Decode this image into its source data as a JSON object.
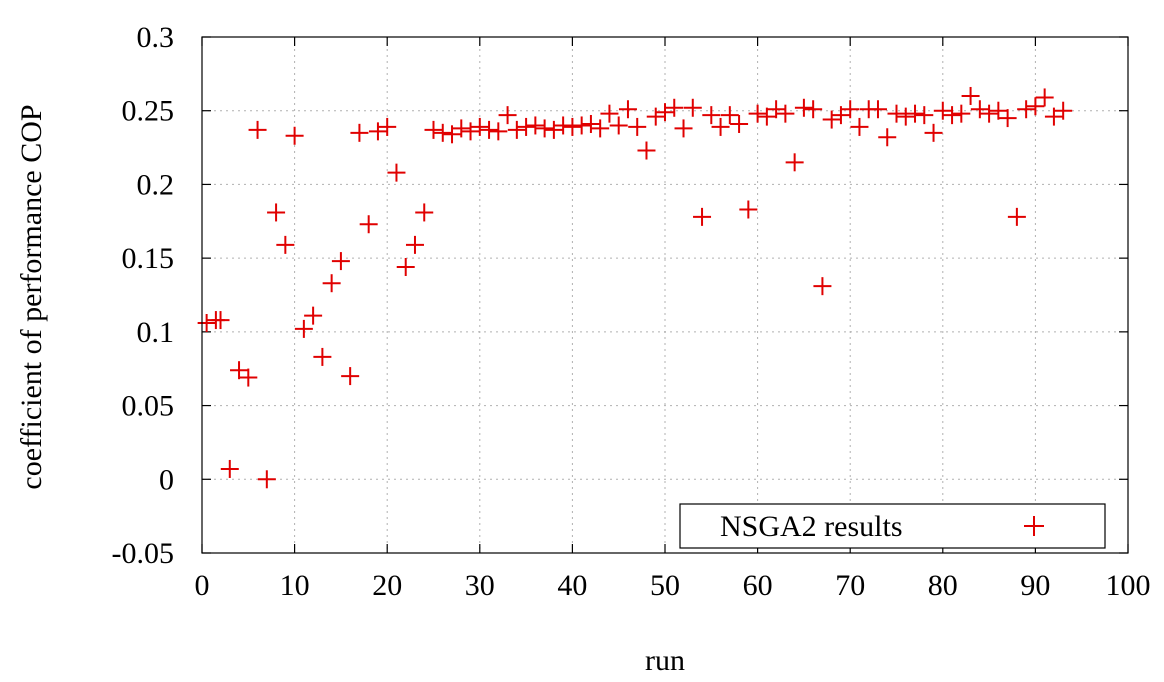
{
  "chart_data": {
    "type": "scatter",
    "title": "",
    "xlabel": "run",
    "ylabel": "coefficient of performance COP",
    "xlim": [
      0,
      100
    ],
    "ylim": [
      -0.05,
      0.3
    ],
    "xticks": [
      0,
      10,
      20,
      30,
      40,
      50,
      60,
      70,
      80,
      90,
      100
    ],
    "yticks": [
      -0.05,
      0,
      0.05,
      0.1,
      0.15,
      0.2,
      0.25,
      0.3
    ],
    "grid": true,
    "legend_position": "bottom-right",
    "series": [
      {
        "name": "NSGA2 results",
        "marker": "plus",
        "color": "#e00000",
        "points": [
          [
            0.5,
            0.106
          ],
          [
            1.5,
            0.108
          ],
          [
            2,
            0.108
          ],
          [
            3,
            0.007
          ],
          [
            4,
            0.074
          ],
          [
            5,
            0.069
          ],
          [
            6,
            0.237
          ],
          [
            7,
            0.0
          ],
          [
            8,
            0.181
          ],
          [
            9,
            0.159
          ],
          [
            10,
            0.233
          ],
          [
            11,
            0.102
          ],
          [
            12,
            0.111
          ],
          [
            13,
            0.083
          ],
          [
            14,
            0.133
          ],
          [
            15,
            0.148
          ],
          [
            16,
            0.07
          ],
          [
            17,
            0.235
          ],
          [
            18,
            0.173
          ],
          [
            19,
            0.236
          ],
          [
            20,
            0.239
          ],
          [
            21,
            0.208
          ],
          [
            22,
            0.144
          ],
          [
            23,
            0.159
          ],
          [
            24,
            0.181
          ],
          [
            25,
            0.237
          ],
          [
            26,
            0.235
          ],
          [
            27,
            0.234
          ],
          [
            28,
            0.238
          ],
          [
            29,
            0.236
          ],
          [
            30,
            0.239
          ],
          [
            31,
            0.237
          ],
          [
            32,
            0.236
          ],
          [
            33,
            0.247
          ],
          [
            34,
            0.237
          ],
          [
            35,
            0.239
          ],
          [
            36,
            0.24
          ],
          [
            37,
            0.238
          ],
          [
            38,
            0.237
          ],
          [
            39,
            0.24
          ],
          [
            40,
            0.239
          ],
          [
            41,
            0.24
          ],
          [
            42,
            0.241
          ],
          [
            43,
            0.238
          ],
          [
            44,
            0.248
          ],
          [
            45,
            0.24
          ],
          [
            46,
            0.251
          ],
          [
            47,
            0.239
          ],
          [
            48,
            0.223
          ],
          [
            49,
            0.246
          ],
          [
            50,
            0.249
          ],
          [
            51,
            0.252
          ],
          [
            52,
            0.238
          ],
          [
            53,
            0.252
          ],
          [
            54,
            0.178
          ],
          [
            55,
            0.247
          ],
          [
            56,
            0.239
          ],
          [
            57,
            0.247
          ],
          [
            58,
            0.241
          ],
          [
            59,
            0.183
          ],
          [
            60,
            0.248
          ],
          [
            61,
            0.246
          ],
          [
            62,
            0.251
          ],
          [
            63,
            0.248
          ],
          [
            64,
            0.215
          ],
          [
            65,
            0.252
          ],
          [
            66,
            0.251
          ],
          [
            67,
            0.131
          ],
          [
            68,
            0.244
          ],
          [
            69,
            0.247
          ],
          [
            70,
            0.251
          ],
          [
            71,
            0.239
          ],
          [
            72,
            0.251
          ],
          [
            73,
            0.251
          ],
          [
            74,
            0.232
          ],
          [
            75,
            0.248
          ],
          [
            76,
            0.246
          ],
          [
            77,
            0.248
          ],
          [
            78,
            0.247
          ],
          [
            79,
            0.235
          ],
          [
            80,
            0.25
          ],
          [
            81,
            0.247
          ],
          [
            82,
            0.248
          ],
          [
            83,
            0.26
          ],
          [
            84,
            0.251
          ],
          [
            85,
            0.248
          ],
          [
            86,
            0.25
          ],
          [
            87,
            0.245
          ],
          [
            88,
            0.178
          ],
          [
            89,
            0.251
          ],
          [
            90,
            0.253
          ],
          [
            91,
            0.259
          ],
          [
            92,
            0.246
          ],
          [
            93,
            0.25
          ]
        ]
      }
    ]
  }
}
